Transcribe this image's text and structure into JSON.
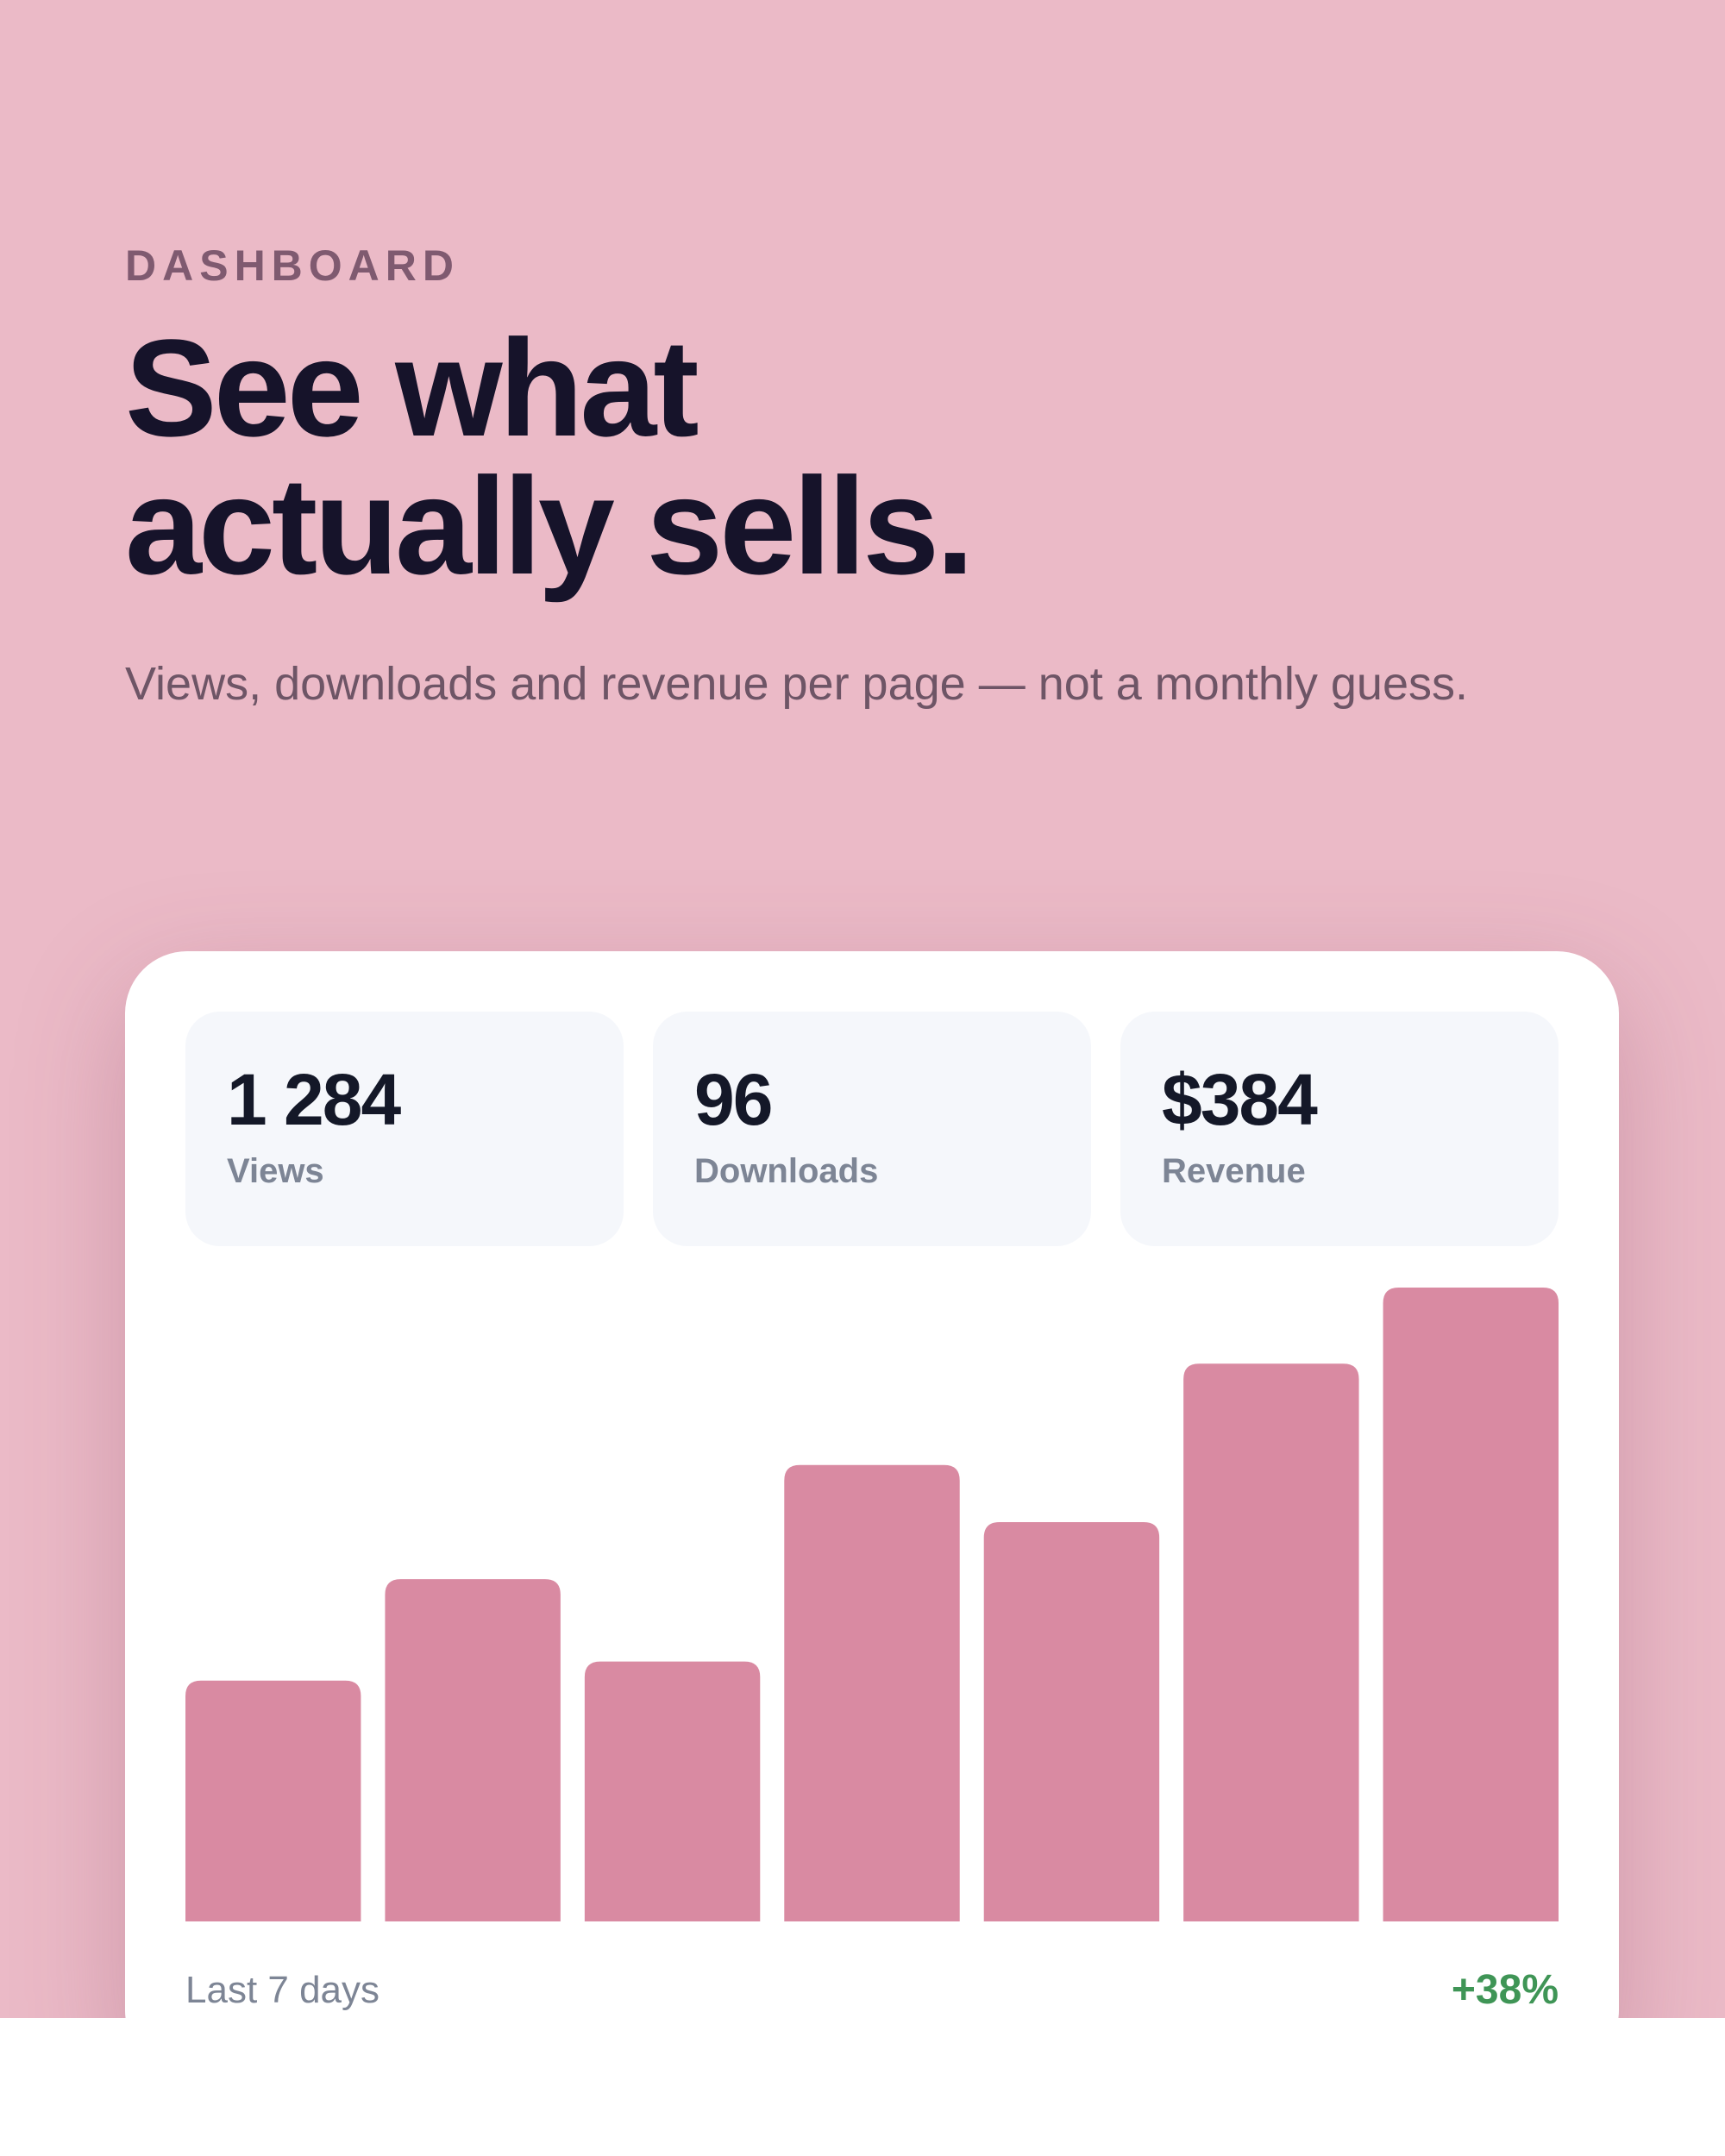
{
  "theme": {
    "background": "#ebbac7",
    "bar_color": "#d98aa2",
    "positive_color": "#3f9556"
  },
  "hero": {
    "eyebrow": "DASHBOARD",
    "headline_line1": "See what",
    "headline_line2": "actually sells.",
    "subtitle": "Views, downloads and revenue per page — not a monthly guess."
  },
  "stats": [
    {
      "value": "1 284",
      "label": "Views"
    },
    {
      "value": "96",
      "label": "Downloads"
    },
    {
      "value": "$384",
      "label": "Revenue"
    }
  ],
  "chart_data": {
    "type": "bar",
    "values": [
      38,
      54,
      41,
      72,
      63,
      88,
      100
    ],
    "ylim": [
      0,
      100
    ],
    "grid": false,
    "legend": "none"
  },
  "footer": {
    "range": "Last 7 days",
    "change": "+38%"
  }
}
